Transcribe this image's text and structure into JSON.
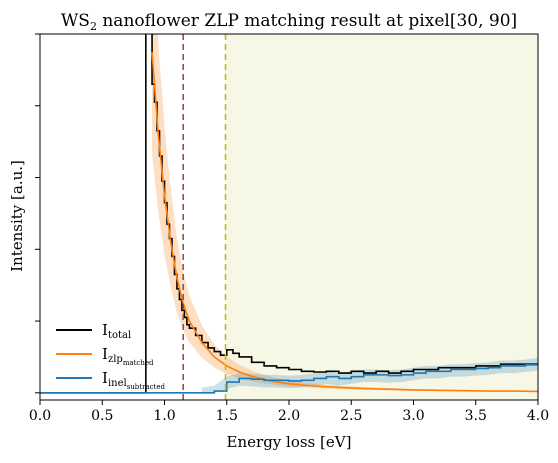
{
  "chart_data": {
    "type": "line",
    "title": "WS",
    "title_sub": "2",
    "title_rest": " nanoflower ZLP matching result at pixel[30, 90]",
    "xlabel": "Energy loss [eV]",
    "ylabel": "Intensity [a.u.]",
    "xlim": [
      0.0,
      4.0
    ],
    "ylim": [
      -0.02,
      1.0
    ],
    "x_ticks": [
      0.0,
      0.5,
      1.0,
      1.5,
      2.0,
      2.5,
      3.0,
      3.5,
      4.0
    ],
    "x_tick_labels": [
      "0.0",
      "0.5",
      "1.0",
      "1.5",
      "2.0",
      "2.5",
      "3.0",
      "3.5",
      "4.0"
    ],
    "y_ticks": [
      0.0,
      0.2,
      0.4,
      0.6,
      0.8,
      1.0
    ],
    "grid": false,
    "legend_position": "bottom-left",
    "legend": [
      {
        "main": "I",
        "sub": "total",
        "sub2": "",
        "color": "#000000"
      },
      {
        "main": "I",
        "sub": "zlp",
        "sub2": "matched",
        "color": "#ff7f0e"
      },
      {
        "main": "I",
        "sub": "inel",
        "sub2": "subtracted",
        "color": "#1f77b4"
      }
    ],
    "vlines": [
      {
        "x": 1.15,
        "color": "#8c564b",
        "style": "dashed"
      },
      {
        "x": 1.49,
        "color": "#bcbd22",
        "style": "dashed"
      }
    ],
    "shaded_region": {
      "x_start": 1.49,
      "x_end": 4.0,
      "color": "#f7f7e6"
    },
    "series": [
      {
        "color": "#000000",
        "style": "step",
        "x": [
          0.0,
          0.85,
          0.9,
          0.92,
          0.94,
          0.96,
          0.98,
          1.0,
          1.02,
          1.04,
          1.06,
          1.08,
          1.1,
          1.12,
          1.14,
          1.16,
          1.18,
          1.2,
          1.25,
          1.3,
          1.35,
          1.4,
          1.45,
          1.5,
          1.55,
          1.6,
          1.7,
          1.8,
          1.9,
          2.0,
          2.1,
          2.2,
          2.3,
          2.4,
          2.5,
          2.6,
          2.7,
          2.8,
          2.9,
          3.0,
          3.1,
          3.2,
          3.3,
          3.4,
          3.5,
          3.6,
          3.7,
          3.8,
          3.9,
          4.0
        ],
        "values": [
          0.0,
          1.05,
          0.86,
          0.81,
          0.73,
          0.66,
          0.59,
          0.53,
          0.47,
          0.43,
          0.38,
          0.33,
          0.29,
          0.26,
          0.23,
          0.21,
          0.19,
          0.18,
          0.16,
          0.14,
          0.125,
          0.115,
          0.105,
          0.12,
          0.11,
          0.1,
          0.085,
          0.075,
          0.07,
          0.065,
          0.06,
          0.058,
          0.06,
          0.055,
          0.06,
          0.055,
          0.06,
          0.055,
          0.06,
          0.065,
          0.065,
          0.07,
          0.07,
          0.07,
          0.075,
          0.075,
          0.08,
          0.08,
          0.08,
          0.085
        ]
      },
      {
        "color": "#ff7f0e",
        "style": "line",
        "x": [
          0.9,
          0.95,
          1.0,
          1.05,
          1.1,
          1.15,
          1.2,
          1.3,
          1.4,
          1.5,
          1.6,
          1.7,
          1.8,
          1.9,
          2.0,
          2.2,
          2.4,
          2.6,
          2.8,
          3.0,
          3.2,
          3.4,
          3.6,
          3.8,
          4.0
        ],
        "values": [
          0.95,
          0.72,
          0.55,
          0.42,
          0.32,
          0.25,
          0.2,
          0.14,
          0.1,
          0.075,
          0.058,
          0.046,
          0.037,
          0.03,
          0.025,
          0.019,
          0.015,
          0.012,
          0.01,
          0.008,
          0.007,
          0.006,
          0.005,
          0.005,
          0.004
        ]
      },
      {
        "color": "#1f77b4",
        "style": "step",
        "x": [
          0.0,
          1.3,
          1.4,
          1.5,
          1.6,
          1.7,
          1.8,
          1.9,
          2.0,
          2.1,
          2.2,
          2.3,
          2.4,
          2.5,
          2.6,
          2.7,
          2.8,
          2.9,
          3.0,
          3.1,
          3.2,
          3.3,
          3.4,
          3.5,
          3.6,
          3.7,
          3.8,
          3.9,
          4.0
        ],
        "values": [
          0.0,
          0.0,
          0.005,
          0.03,
          0.04,
          0.038,
          0.035,
          0.035,
          0.033,
          0.035,
          0.04,
          0.045,
          0.04,
          0.045,
          0.05,
          0.05,
          0.048,
          0.05,
          0.055,
          0.06,
          0.06,
          0.065,
          0.065,
          0.068,
          0.07,
          0.075,
          0.075,
          0.078,
          0.082
        ]
      }
    ]
  }
}
